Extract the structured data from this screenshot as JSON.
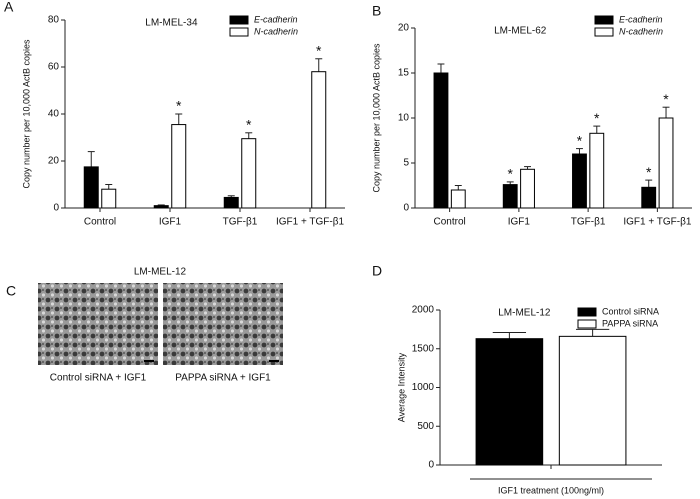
{
  "chart_data": [
    {
      "type": "bar",
      "panel": "A",
      "title": "LM-MEL-34",
      "y_label": "Copy number per 10,000 ActB copies",
      "categories": [
        "Control",
        "IGF1",
        "TGF-β1",
        "IGF1 + TGF-β1"
      ],
      "series": [
        {
          "name": "E-cadherin",
          "color": "#000000",
          "values": [
            17.5,
            1,
            4.5,
            null
          ],
          "errors": [
            6.5,
            0.3,
            0.7,
            null
          ],
          "marks": [
            null,
            null,
            null,
            null
          ]
        },
        {
          "name": "N-cadherin",
          "color": "#ffffff",
          "values": [
            8,
            35.5,
            29.5,
            58
          ],
          "errors": [
            2,
            4.5,
            2.5,
            5.5
          ],
          "marks": [
            null,
            "*",
            "*",
            "*"
          ]
        }
      ],
      "ylim": [
        0,
        80
      ],
      "yticks": [
        0,
        20,
        40,
        60,
        80
      ],
      "legend": "upper right"
    },
    {
      "type": "bar",
      "panel": "B",
      "title": "LM-MEL-62",
      "y_label": "Copy number per 10,000 ActB copies",
      "categories": [
        "Control",
        "IGF1",
        "TGF-β1",
        "IGF1 + TGF-β1"
      ],
      "series": [
        {
          "name": "E-cadherin",
          "color": "#000000",
          "values": [
            15,
            2.6,
            6,
            2.3
          ],
          "errors": [
            1,
            0.3,
            0.6,
            0.8
          ],
          "marks": [
            null,
            "*",
            "*",
            "*"
          ]
        },
        {
          "name": "N-cadherin",
          "color": "#ffffff",
          "values": [
            2,
            4.3,
            8.3,
            10
          ],
          "errors": [
            0.5,
            0.3,
            0.8,
            1.2
          ],
          "marks": [
            null,
            null,
            "*",
            "*"
          ]
        }
      ],
      "ylim": [
        0,
        20
      ],
      "yticks": [
        0,
        5,
        10,
        15,
        20
      ],
      "legend": "upper right"
    },
    {
      "type": "bar",
      "panel": "D",
      "title": "LM-MEL-12",
      "y_label": "Average Intensity",
      "x_label": "IGF1 treatment (100ng/ml)",
      "categories": [
        null
      ],
      "series": [
        {
          "name": "Control siRNA",
          "color": "#000000",
          "values": [
            1630
          ],
          "errors": [
            80
          ],
          "marks": [
            null
          ]
        },
        {
          "name": "PAPPA siRNA",
          "color": "#ffffff",
          "values": [
            1660
          ],
          "errors": [
            90
          ],
          "marks": [
            null
          ]
        }
      ],
      "ylim": [
        0,
        2000
      ],
      "yticks": [
        0,
        500,
        1000,
        1500,
        2000
      ],
      "legend": "upper right"
    }
  ],
  "image_panel": {
    "panel": "C",
    "title": "LM-MEL-12",
    "captions": [
      "Control siRNA + IGF1",
      "PAPPA siRNA + IGF1"
    ]
  }
}
